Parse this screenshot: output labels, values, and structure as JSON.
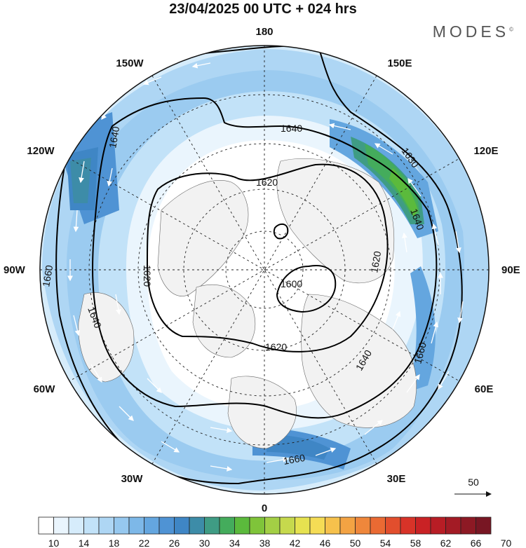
{
  "header": {
    "title": "23/04/2025  00 UTC  + 024 hrs",
    "brand": "MODES",
    "brand_mark": "©"
  },
  "map": {
    "projection": "north-polar-stereographic",
    "longitude_labels": {
      "top": "180",
      "bottom": "0",
      "left": "90W",
      "right": "90E",
      "upper_left": "150W",
      "upper_left2": "120W",
      "upper_right": "150E",
      "upper_right2": "120E",
      "lower_left": "60W",
      "lower_left2": "30W",
      "lower_right": "60E",
      "lower_right2": "30E"
    },
    "contour_labels": [
      "1600",
      "1620",
      "1620",
      "1620",
      "1620",
      "1640",
      "1640",
      "1640",
      "1640",
      "1640",
      "1660",
      "1660",
      "1660",
      "1630"
    ],
    "contour_color": "#000000",
    "ocean_fill": "#ffffff",
    "land_fill": "#f2f2f2"
  },
  "vector_reference": {
    "value": "50"
  },
  "colorbar": {
    "tick_labels": [
      "10",
      "14",
      "18",
      "22",
      "26",
      "30",
      "34",
      "38",
      "42",
      "46",
      "50",
      "54",
      "58",
      "62",
      "66",
      "70"
    ],
    "colors": [
      "#ffffff",
      "#eaf5fd",
      "#d6ecfb",
      "#c2e2f8",
      "#aed6f4",
      "#96c8ef",
      "#7db8e8",
      "#64a6df",
      "#4f93d4",
      "#3f86c5",
      "#3d8ca8",
      "#3f9c84",
      "#44ac5c",
      "#5bba3c",
      "#7fc43a",
      "#a3cf45",
      "#c6d94d",
      "#e6e250",
      "#f5dc55",
      "#f6c14c",
      "#f3a343",
      "#ef873b",
      "#ea6a33",
      "#e24e2d",
      "#d83328",
      "#c92225",
      "#b81d25",
      "#a31b25",
      "#8d1924",
      "#781623"
    ]
  }
}
